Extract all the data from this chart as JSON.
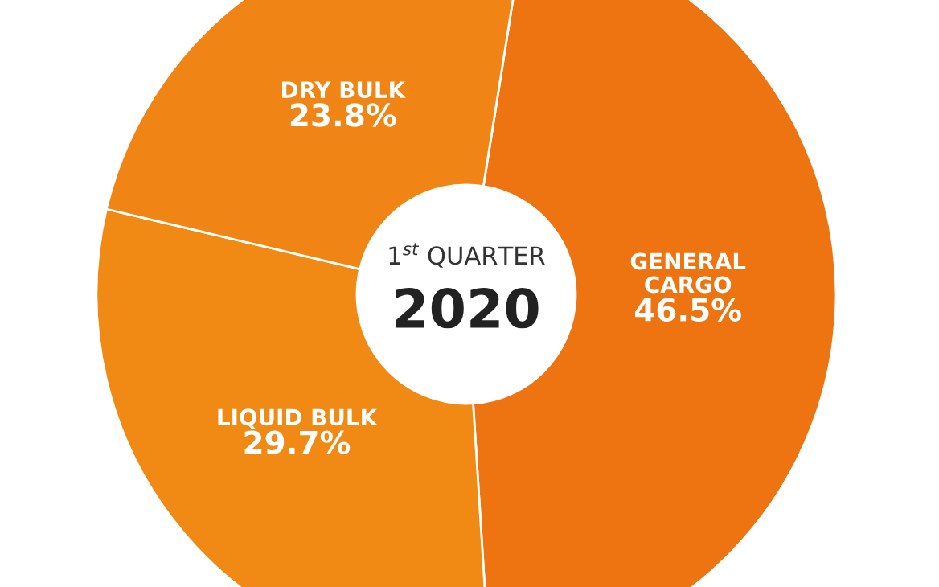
{
  "chart_data": {
    "type": "donut",
    "categories": [
      "GENERAL\nCARGO",
      "LIQUID BULK",
      "DRY BULK"
    ],
    "values": [
      46.5,
      29.7,
      23.8
    ],
    "colors": [
      "#ee7411",
      "#f08a14",
      "#f08515"
    ],
    "value_labels": [
      "46.5%",
      "29.7%",
      "23.8%"
    ],
    "legend": false,
    "annotations": [
      "1$^{st}$ QUARTER",
      "2020"
    ]
  }
}
